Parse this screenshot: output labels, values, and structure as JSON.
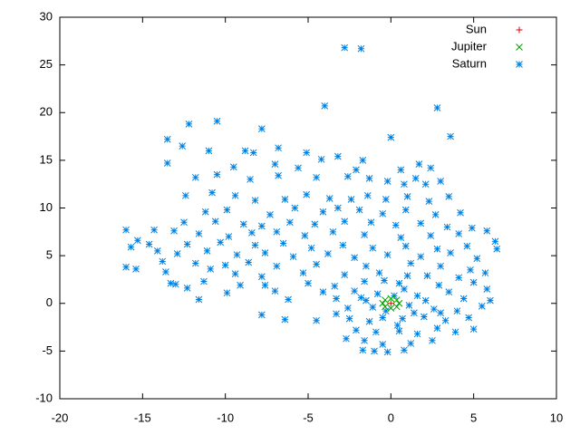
{
  "chart_data": {
    "type": "scatter",
    "xlim": [
      -20,
      10
    ],
    "xticks": [
      -20,
      -15,
      -10,
      -5,
      0,
      5,
      10
    ],
    "ylim": [
      -10,
      30
    ],
    "yticks": [
      -10,
      -5,
      0,
      5,
      10,
      15,
      20,
      25,
      30
    ],
    "grid": false,
    "legend": "top-right",
    "series": [
      {
        "name": "Sun",
        "color": "#e00000",
        "marker": "plus",
        "x": [
          0
        ],
        "values": [
          0
        ]
      },
      {
        "name": "Jupiter",
        "color": "#00a000",
        "marker": "cross",
        "x": [
          0.5,
          0.35,
          0,
          -0.35,
          -0.5,
          -0.35,
          0,
          0.35
        ],
        "values": [
          0,
          0.35,
          0.5,
          0.35,
          0,
          -0.35,
          -0.5,
          -0.35
        ]
      },
      {
        "name": "Saturn",
        "color": "#0080e0",
        "marker": "star",
        "x": [
          -2.8,
          -1.8,
          2.8,
          -4,
          -10.5,
          -12.2,
          -7.8,
          -13.5,
          3.6,
          0,
          -12.6,
          -11,
          -6.8,
          -8.8,
          -8.3,
          -5.1,
          -3.2,
          -4.2,
          -1.7,
          -13.5,
          -9.5,
          -7,
          -5.6,
          -2.1,
          0.6,
          1.7,
          2.4,
          -11.8,
          -10.5,
          -8.5,
          -6.8,
          -4.5,
          -2.6,
          -1.3,
          -0.2,
          0.8,
          1.5,
          2.1,
          3,
          -12.4,
          -10.8,
          -9.4,
          -8.2,
          -6.4,
          -5.1,
          -3.7,
          -2.4,
          -1.4,
          -0.3,
          1,
          2.3,
          3.5,
          -11.2,
          -9.9,
          -7.3,
          -5.8,
          -4.1,
          -3.2,
          -1.9,
          -0.5,
          0.9,
          2.7,
          4.2,
          -12.5,
          -10.6,
          -8.9,
          -7.8,
          -6.1,
          -4.6,
          -2.8,
          -1.2,
          0.3,
          1.8,
          3.4,
          4.9,
          -14.3,
          -13.1,
          -11.6,
          -9.8,
          -8.4,
          -6.9,
          -5.2,
          -3.5,
          -1.6,
          0.6,
          2.4,
          4.1,
          5.8,
          -16,
          -15.3,
          -14.6,
          -12.3,
          -10.3,
          -8.2,
          -6.5,
          -4.8,
          -2.9,
          -1.1,
          0.9,
          2.8,
          4.6,
          6.3,
          -15.7,
          -14.1,
          -12.9,
          -11.1,
          -9.3,
          -7.6,
          -5.9,
          -3.8,
          -2.2,
          -0.2,
          1.8,
          3.6,
          5.2,
          6.4,
          -13.8,
          -11.8,
          -10,
          -8.6,
          -6.9,
          -4.5,
          -1.5,
          1.2,
          3,
          4.8,
          -16,
          -15.4,
          -13.6,
          -10.9,
          -9.4,
          -7.8,
          -5.3,
          -2.8,
          -0.7,
          2.2,
          4.1,
          5.7,
          -13.3,
          -11.3,
          -9.1,
          -7.6,
          -5,
          -3.4,
          -1.6,
          0.5,
          2.9,
          5,
          -12.3,
          -13,
          -9.9,
          -7,
          -4.1,
          -2.2,
          0.8,
          3.5,
          5.8,
          -11.6,
          -6.2,
          -3.3,
          -1.8,
          1.6,
          4.4,
          6,
          -7.8,
          -6.4,
          -4.5,
          -2.6,
          -1.1,
          1.1,
          2.6,
          4,
          5.5,
          -2.5,
          -1.3,
          -0.5,
          0.7,
          2,
          3.3,
          4.7,
          -2.1,
          -0.9,
          0.5,
          1.6,
          2.8,
          3.9,
          5,
          -1.6,
          -0.5,
          1.2,
          2.5,
          -1.7,
          -1,
          -0.2,
          0.8,
          -2.7,
          -3.3,
          -0.3,
          0.2,
          -0.8,
          1.4,
          0.4,
          -1.5,
          2.1,
          3,
          -0.4,
          1
        ],
        "values": [
          26.8,
          26.7,
          20.5,
          20.7,
          19.1,
          18.8,
          18.3,
          17.2,
          17.5,
          17.4,
          16.5,
          16,
          16.3,
          16,
          15.8,
          15.8,
          15.4,
          15.1,
          15,
          14.7,
          14.3,
          14.6,
          14.2,
          14,
          14,
          14.6,
          14.2,
          13.2,
          13.5,
          13,
          13.4,
          13.2,
          13.3,
          13.1,
          12.8,
          12.5,
          13.1,
          12.5,
          12.8,
          11.3,
          11.6,
          11.3,
          10.8,
          10.9,
          11.4,
          11,
          10.9,
          11.3,
          10.9,
          11.2,
          10.7,
          11.2,
          9.6,
          9.8,
          9.3,
          10,
          9.6,
          10,
          9.8,
          9.4,
          9.8,
          9.3,
          9.5,
          8.5,
          8.6,
          8.3,
          8.1,
          8.5,
          8.3,
          8.6,
          8.5,
          8.2,
          8.4,
          8,
          7.9,
          7.7,
          7.6,
          7.3,
          7,
          7.4,
          7.5,
          7.1,
          7.5,
          7.2,
          6.9,
          7.1,
          7.3,
          7.6,
          7.7,
          6.6,
          6.2,
          6.2,
          6.4,
          6.1,
          6.3,
          5.8,
          6.1,
          5.8,
          6,
          5.7,
          6,
          6.5,
          5.9,
          5.5,
          5.2,
          5.5,
          5.1,
          5.3,
          4.9,
          5.2,
          4.8,
          5.1,
          4.9,
          5.3,
          4.7,
          5.7,
          4.4,
          4.2,
          4,
          4.3,
          3.9,
          4.1,
          3.9,
          4.2,
          3.9,
          3.5,
          3.8,
          3.6,
          3.3,
          3.6,
          3.1,
          2.8,
          3.2,
          3,
          3.2,
          2.9,
          2.7,
          3.2,
          2.1,
          2.3,
          1.9,
          1.9,
          2.1,
          1.8,
          2.3,
          2.1,
          1.9,
          2.2,
          1.6,
          2,
          1.1,
          1.3,
          1.2,
          1.3,
          1.5,
          1.2,
          1.5,
          0.4,
          0.4,
          0.5,
          0.6,
          0.8,
          0.5,
          0.3,
          -1.2,
          -1.7,
          -1.8,
          -0.5,
          -0.4,
          -0.2,
          -0.6,
          -0.8,
          -0.3,
          -1.6,
          -1.9,
          -1.5,
          -1.6,
          -1.4,
          -1.8,
          -1.5,
          -2.8,
          -3,
          -2.9,
          -3.2,
          -2.6,
          -3,
          -2.7,
          -3.9,
          -4.3,
          -4.2,
          -3.9,
          -4.9,
          -5,
          -5.1,
          -4.9,
          -3.7,
          -1.1,
          -0.8,
          0.8,
          1,
          -1,
          -2.3,
          0.3,
          0.3,
          -1,
          2.4,
          2.9
        ]
      }
    ]
  }
}
